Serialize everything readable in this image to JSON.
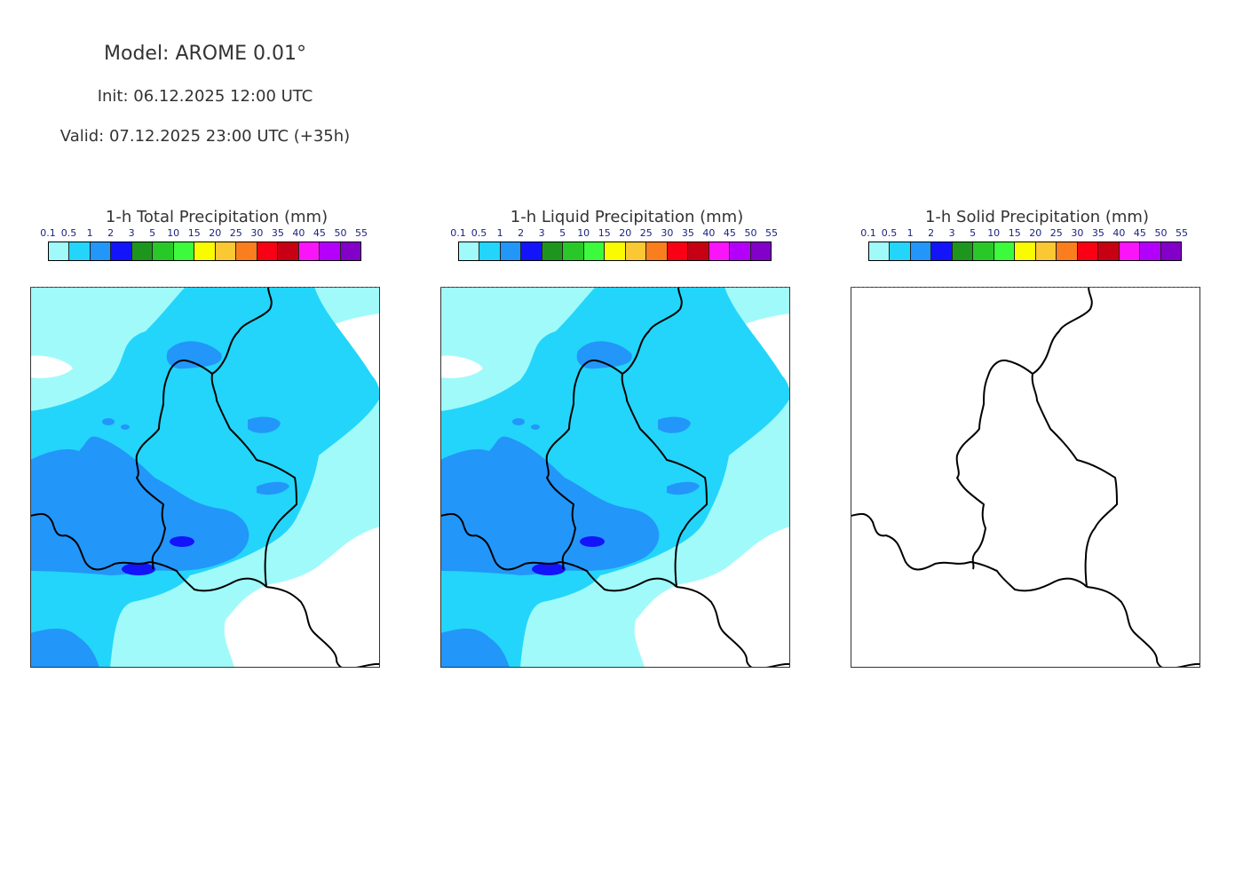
{
  "header": {
    "model": "Model: AROME 0.01°",
    "init": "Init: 06.12.2025 12:00 UTC",
    "valid": "Valid: 07.12.2025 23:00 UTC (+35h)"
  },
  "colorbar": {
    "labels": [
      "0.1",
      "0.5",
      "1",
      "2",
      "3",
      "5",
      "10",
      "15",
      "20",
      "25",
      "30",
      "35",
      "40",
      "45",
      "50",
      "55"
    ],
    "colors": [
      "#a0fafa",
      "#23d5fa",
      "#2396fa",
      "#1414fa",
      "#1e961e",
      "#28c828",
      "#3cfa3c",
      "#fafa00",
      "#fac832",
      "#fa7d1e",
      "#fa0014",
      "#c80014",
      "#fa14fa",
      "#b400fa",
      "#8200c8"
    ]
  },
  "panels": [
    {
      "title": "1-h Total Precipitation (mm)",
      "has_precip": true
    },
    {
      "title": "1-h Liquid Precipitation (mm)",
      "has_precip": true
    },
    {
      "title": "1-h Solid Precipitation (mm)",
      "has_precip": false
    }
  ]
}
